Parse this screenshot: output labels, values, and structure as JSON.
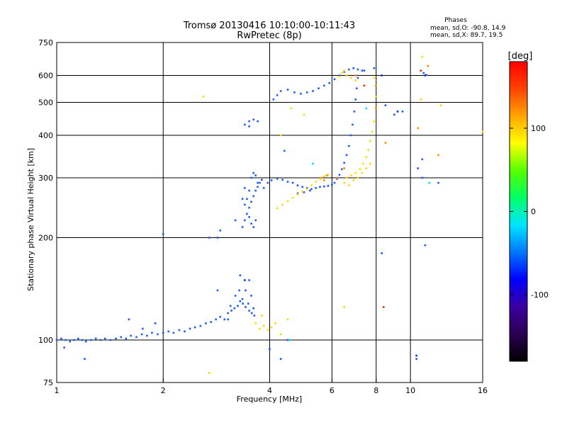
{
  "header": {
    "title_line1": "Tromsø 20130416 10:10:00-10:11:43",
    "title_line2": "RwPretec (8p)",
    "stats_title": "Phases",
    "stats_line1": "mean, sd,O: -90.8, 14.9",
    "stats_line2": "mean, sd,X: 89.7, 19.5"
  },
  "colorbar": {
    "unit": "[deg]",
    "ticks": [
      {
        "value": 100,
        "label": "100"
      },
      {
        "value": 0,
        "label": "0"
      },
      {
        "value": -100,
        "label": "-100"
      }
    ],
    "range": [
      -180,
      180
    ],
    "colors": [
      "#000000",
      "#2a0050",
      "#3a00a0",
      "#0000ff",
      "#0077ff",
      "#00e5ff",
      "#00ff66",
      "#55ff00",
      "#ffff00",
      "#ffa500",
      "#ff4400",
      "#ff0000"
    ]
  },
  "chart_data": {
    "type": "scatter",
    "xlabel": "Frequency [MHz]",
    "ylabel": "Stationary phase Virtual Height [km]",
    "xscale": "log",
    "yscale": "log",
    "xlim": [
      1,
      16
    ],
    "ylim": [
      75,
      750
    ],
    "xticks": [
      1,
      2,
      4,
      6,
      8,
      10,
      16
    ],
    "yticks": [
      75,
      100,
      200,
      300,
      400,
      500,
      600,
      750
    ],
    "xgrid": [
      2,
      4,
      6,
      8,
      10
    ],
    "ygrid": [
      100,
      200,
      300,
      400,
      500,
      600
    ],
    "series": [
      {
        "color": "#1e5aff",
        "points": [
          [
            1.0,
            100
          ],
          [
            1.03,
            101
          ],
          [
            1.06,
            100
          ],
          [
            1.09,
            99
          ],
          [
            1.12,
            100
          ],
          [
            1.15,
            101
          ],
          [
            1.18,
            100
          ],
          [
            1.21,
            99
          ],
          [
            1.25,
            100
          ],
          [
            1.29,
            101
          ],
          [
            1.33,
            100
          ],
          [
            1.37,
            101
          ],
          [
            1.42,
            100
          ],
          [
            1.47,
            101
          ],
          [
            1.52,
            102
          ],
          [
            1.57,
            101
          ],
          [
            1.62,
            103
          ],
          [
            1.68,
            102
          ],
          [
            1.74,
            104
          ],
          [
            1.8,
            103
          ],
          [
            1.86,
            105
          ],
          [
            1.93,
            104
          ],
          [
            2.0,
            105
          ],
          [
            2.07,
            106
          ],
          [
            2.14,
            105
          ],
          [
            2.22,
            107
          ],
          [
            2.3,
            106
          ],
          [
            2.38,
            108
          ],
          [
            2.46,
            109
          ],
          [
            2.55,
            110
          ],
          [
            2.64,
            112
          ],
          [
            2.73,
            113
          ],
          [
            2.82,
            115
          ],
          [
            2.9,
            117
          ],
          [
            2.98,
            115
          ],
          [
            3.05,
            120
          ],
          [
            3.12,
            122
          ],
          [
            3.18,
            124
          ],
          [
            3.25,
            126
          ],
          [
            3.3,
            130
          ],
          [
            3.36,
            128
          ],
          [
            3.42,
            125
          ],
          [
            3.5,
            122
          ],
          [
            3.56,
            120
          ],
          [
            3.62,
            118
          ],
          [
            3.05,
            115
          ],
          [
            3.1,
            126
          ],
          [
            3.2,
            135
          ],
          [
            3.28,
            140
          ],
          [
            3.35,
            132
          ],
          [
            3.42,
            140
          ],
          [
            3.48,
            128
          ],
          [
            3.55,
            135
          ],
          [
            3.6,
            124
          ],
          [
            3.3,
            155
          ],
          [
            3.5,
            150
          ],
          [
            2.85,
            140
          ],
          [
            3.35,
            215
          ],
          [
            3.4,
            225
          ],
          [
            3.45,
            235
          ],
          [
            3.5,
            245
          ],
          [
            3.55,
            255
          ],
          [
            3.6,
            265
          ],
          [
            3.65,
            275
          ],
          [
            3.7,
            282
          ],
          [
            3.75,
            290
          ],
          [
            3.8,
            296
          ],
          [
            3.4,
            250
          ],
          [
            3.45,
            260
          ],
          [
            3.5,
            275
          ],
          [
            3.55,
            300
          ],
          [
            3.6,
            310
          ],
          [
            3.65,
            305
          ],
          [
            3.7,
            290
          ],
          [
            3.5,
            230
          ],
          [
            3.55,
            220
          ],
          [
            3.6,
            215
          ],
          [
            3.65,
            225
          ],
          [
            3.35,
            260
          ],
          [
            3.4,
            280
          ],
          [
            3.85,
            280
          ],
          [
            3.95,
            290
          ],
          [
            4.05,
            295
          ],
          [
            4.2,
            298
          ],
          [
            4.35,
            296
          ],
          [
            4.5,
            292
          ],
          [
            4.65,
            290
          ],
          [
            4.8,
            285
          ],
          [
            4.95,
            282
          ],
          [
            5.1,
            280
          ],
          [
            5.25,
            278
          ],
          [
            5.4,
            280
          ],
          [
            5.55,
            282
          ],
          [
            5.7,
            283
          ],
          [
            5.85,
            284
          ],
          [
            6.0,
            286
          ],
          [
            6.1,
            290
          ],
          [
            6.2,
            298
          ],
          [
            6.3,
            306
          ],
          [
            6.4,
            318
          ],
          [
            6.5,
            332
          ],
          [
            6.6,
            350
          ],
          [
            6.7,
            372
          ],
          [
            6.78,
            400
          ],
          [
            6.86,
            430
          ],
          [
            6.94,
            470
          ],
          [
            7.0,
            510
          ],
          [
            7.05,
            550
          ],
          [
            7.1,
            590
          ],
          [
            3.4,
            430
          ],
          [
            3.5,
            440
          ],
          [
            3.6,
            445
          ],
          [
            3.7,
            440
          ],
          [
            3.5,
            425
          ],
          [
            4.3,
            540
          ],
          [
            4.5,
            545
          ],
          [
            4.7,
            535
          ],
          [
            4.9,
            530
          ],
          [
            5.1,
            535
          ],
          [
            5.3,
            540
          ],
          [
            5.5,
            550
          ],
          [
            5.7,
            560
          ],
          [
            5.9,
            570
          ],
          [
            6.1,
            585
          ],
          [
            6.3,
            600
          ],
          [
            6.5,
            615
          ],
          [
            6.7,
            625
          ],
          [
            6.9,
            630
          ],
          [
            7.1,
            625
          ],
          [
            7.3,
            620
          ],
          [
            4.1,
            510
          ],
          [
            4.2,
            525
          ],
          [
            2.7,
            200
          ],
          [
            2.85,
            200
          ],
          [
            3.2,
            225
          ],
          [
            2.0,
            205
          ],
          [
            1.75,
            108
          ],
          [
            1.9,
            112
          ],
          [
            1.6,
            115
          ],
          [
            4.8,
            270
          ],
          [
            5.0,
            272
          ],
          [
            5.2,
            275
          ],
          [
            7.4,
            620
          ],
          [
            7.9,
            630
          ],
          [
            9.0,
            460
          ],
          [
            9.5,
            470
          ],
          [
            10.5,
            320
          ],
          [
            10.8,
            300
          ],
          [
            11.0,
            190
          ],
          [
            10.9,
            610
          ],
          [
            11.1,
            602
          ],
          [
            10.4,
            88
          ],
          [
            1.2,
            88
          ],
          [
            1.05,
            95
          ],
          [
            4.0,
            94
          ],
          [
            4.3,
            88
          ],
          [
            4.5,
            100
          ],
          [
            8.3,
            180
          ],
          [
            8.5,
            490
          ],
          [
            10.8,
            340
          ],
          [
            12.0,
            290
          ],
          [
            4.4,
            360
          ],
          [
            2.9,
            210
          ]
        ]
      },
      {
        "color": "#ffd800",
        "points": [
          [
            3.65,
            112
          ],
          [
            3.75,
            108
          ],
          [
            3.85,
            110
          ],
          [
            3.95,
            107
          ],
          [
            4.05,
            109
          ],
          [
            4.15,
            112
          ],
          [
            3.8,
            118
          ],
          [
            4.3,
            104
          ],
          [
            4.2,
            244
          ],
          [
            4.35,
            250
          ],
          [
            4.5,
            256
          ],
          [
            4.65,
            262
          ],
          [
            4.8,
            268
          ],
          [
            4.95,
            273
          ],
          [
            5.1,
            278
          ],
          [
            5.25,
            285
          ],
          [
            5.4,
            292
          ],
          [
            5.55,
            298
          ],
          [
            5.7,
            303
          ],
          [
            5.85,
            306
          ],
          [
            6.6,
            300
          ],
          [
            6.8,
            305
          ],
          [
            7.0,
            310
          ],
          [
            7.2,
            318
          ],
          [
            7.35,
            330
          ],
          [
            7.5,
            345
          ],
          [
            7.6,
            362
          ],
          [
            7.7,
            385
          ],
          [
            7.8,
            410
          ],
          [
            7.9,
            440
          ],
          [
            7.95,
            480
          ],
          [
            8.0,
            520
          ],
          [
            7.95,
            560
          ],
          [
            7.9,
            590
          ],
          [
            6.4,
            610
          ],
          [
            6.6,
            600
          ],
          [
            6.8,
            590
          ],
          [
            7.0,
            580
          ],
          [
            6.3,
            595
          ],
          [
            6.5,
            620
          ],
          [
            6.5,
            290
          ],
          [
            6.7,
            285
          ],
          [
            6.9,
            295
          ],
          [
            7.1,
            300
          ],
          [
            7.3,
            310
          ],
          [
            7.5,
            320
          ],
          [
            7.7,
            330
          ],
          [
            4.6,
            480
          ],
          [
            5.0,
            460
          ],
          [
            2.6,
            520
          ],
          [
            4.3,
            400
          ],
          [
            10.7,
            510
          ],
          [
            12.2,
            490
          ],
          [
            10.8,
            680
          ],
          [
            16.0,
            410
          ],
          [
            2.7,
            80
          ],
          [
            6.5,
            125
          ],
          [
            4.5,
            115
          ]
        ]
      },
      {
        "color": "#ff8c00",
        "points": [
          [
            5.6,
            300
          ],
          [
            5.7,
            295
          ],
          [
            5.8,
            305
          ],
          [
            6.2,
            300
          ],
          [
            6.5,
            320
          ],
          [
            7.0,
            600
          ],
          [
            10.5,
            420
          ],
          [
            12.0,
            350
          ],
          [
            11.2,
            640
          ],
          [
            8.5,
            380
          ]
        ]
      },
      {
        "color": "#ff2000",
        "points": [
          [
            8.4,
            125
          ],
          [
            7.4,
            560
          ],
          [
            10.7,
            620
          ]
        ]
      },
      {
        "color": "#00d8ff",
        "points": [
          [
            4.55,
            100
          ],
          [
            11.3,
            290
          ],
          [
            5.3,
            330
          ],
          [
            7.5,
            480
          ]
        ]
      },
      {
        "color": "#0030d0",
        "points": [
          [
            8.3,
            600
          ],
          [
            9.2,
            470
          ],
          [
            10.4,
            90
          ],
          [
            3.4,
            150
          ],
          [
            11.0,
            600
          ]
        ]
      }
    ]
  }
}
